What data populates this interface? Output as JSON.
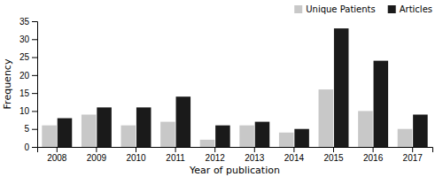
{
  "chart_data": {
    "type": "bar",
    "xlabel": "Year of publication",
    "ylabel": "Frequency",
    "categories": [
      "2008",
      "2009",
      "2010",
      "2011",
      "2012",
      "2013",
      "2014",
      "2015",
      "2016",
      "2017"
    ],
    "series": [
      {
        "name": "Unique Patients",
        "color": "#c8c8c8",
        "values": [
          6,
          9,
          6,
          7,
          2,
          6,
          4,
          16,
          10,
          5
        ]
      },
      {
        "name": "Articles",
        "color": "#1a1a1a",
        "values": [
          8,
          11,
          11,
          14,
          6,
          7,
          5,
          33,
          24,
          9
        ]
      }
    ],
    "ylim": [
      0,
      35
    ],
    "yticks": [
      0,
      5,
      10,
      15,
      20,
      25,
      30,
      35
    ],
    "grid": false,
    "legend": "upper right"
  }
}
